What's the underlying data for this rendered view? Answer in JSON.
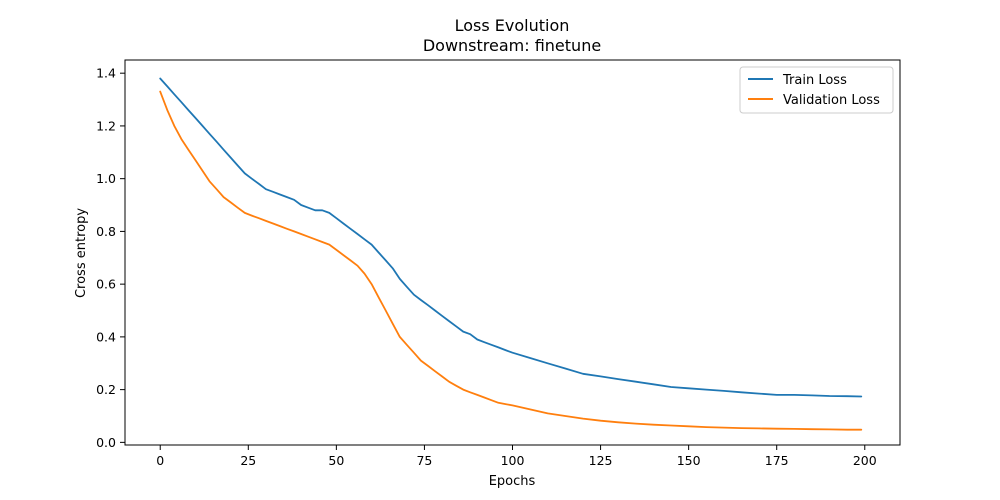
{
  "chart_data": {
    "type": "line",
    "title": "Loss Evolution",
    "subtitle": "Downstream: finetune",
    "xlabel": "Epochs",
    "ylabel": "Cross entropy",
    "xlim": [
      -10,
      210
    ],
    "ylim": [
      -0.01,
      1.45
    ],
    "xticks": [
      0,
      25,
      50,
      75,
      100,
      125,
      150,
      175,
      200
    ],
    "yticks": [
      0.0,
      0.2,
      0.4,
      0.6,
      0.8,
      1.0,
      1.2,
      1.4
    ],
    "xtick_labels": [
      "0",
      "25",
      "50",
      "75",
      "100",
      "125",
      "150",
      "175",
      "200"
    ],
    "ytick_labels": [
      "0.0",
      "0.2",
      "0.4",
      "0.6",
      "0.8",
      "1.0",
      "1.2",
      "1.4"
    ],
    "grid": false,
    "legend_position": "top-right",
    "series": [
      {
        "name": "Train Loss",
        "color": "#1f77b4",
        "x": [
          0,
          2,
          4,
          6,
          8,
          10,
          12,
          14,
          16,
          18,
          20,
          22,
          24,
          26,
          28,
          30,
          32,
          34,
          36,
          38,
          40,
          42,
          44,
          46,
          48,
          50,
          52,
          54,
          56,
          58,
          60,
          62,
          64,
          66,
          68,
          70,
          72,
          74,
          76,
          78,
          80,
          82,
          84,
          86,
          88,
          90,
          92,
          94,
          96,
          98,
          100,
          105,
          110,
          115,
          120,
          125,
          130,
          135,
          140,
          145,
          150,
          155,
          160,
          165,
          170,
          175,
          180,
          185,
          190,
          195,
          199
        ],
        "y": [
          1.38,
          1.35,
          1.32,
          1.29,
          1.26,
          1.23,
          1.2,
          1.17,
          1.14,
          1.11,
          1.08,
          1.05,
          1.02,
          1.0,
          0.98,
          0.96,
          0.95,
          0.94,
          0.93,
          0.92,
          0.9,
          0.89,
          0.88,
          0.88,
          0.87,
          0.85,
          0.83,
          0.81,
          0.79,
          0.77,
          0.75,
          0.72,
          0.69,
          0.66,
          0.62,
          0.59,
          0.56,
          0.54,
          0.52,
          0.5,
          0.48,
          0.46,
          0.44,
          0.42,
          0.41,
          0.39,
          0.38,
          0.37,
          0.36,
          0.35,
          0.34,
          0.32,
          0.3,
          0.28,
          0.26,
          0.25,
          0.24,
          0.23,
          0.22,
          0.21,
          0.205,
          0.2,
          0.195,
          0.19,
          0.185,
          0.18,
          0.18,
          0.178,
          0.176,
          0.175,
          0.174
        ]
      },
      {
        "name": "Validation Loss",
        "color": "#ff7f0e",
        "x": [
          0,
          2,
          4,
          6,
          8,
          10,
          12,
          14,
          16,
          18,
          20,
          22,
          24,
          26,
          28,
          30,
          32,
          34,
          36,
          38,
          40,
          42,
          44,
          46,
          48,
          50,
          52,
          54,
          56,
          58,
          60,
          62,
          64,
          66,
          68,
          70,
          72,
          74,
          76,
          78,
          80,
          82,
          84,
          86,
          88,
          90,
          92,
          94,
          96,
          98,
          100,
          105,
          110,
          115,
          120,
          125,
          130,
          135,
          140,
          145,
          150,
          155,
          160,
          165,
          170,
          175,
          180,
          185,
          190,
          195,
          199
        ],
        "y": [
          1.33,
          1.26,
          1.2,
          1.15,
          1.11,
          1.07,
          1.03,
          0.99,
          0.96,
          0.93,
          0.91,
          0.89,
          0.87,
          0.86,
          0.85,
          0.84,
          0.83,
          0.82,
          0.81,
          0.8,
          0.79,
          0.78,
          0.77,
          0.76,
          0.75,
          0.73,
          0.71,
          0.69,
          0.67,
          0.64,
          0.6,
          0.55,
          0.5,
          0.45,
          0.4,
          0.37,
          0.34,
          0.31,
          0.29,
          0.27,
          0.25,
          0.23,
          0.215,
          0.2,
          0.19,
          0.18,
          0.17,
          0.16,
          0.15,
          0.145,
          0.14,
          0.125,
          0.11,
          0.1,
          0.09,
          0.082,
          0.076,
          0.071,
          0.067,
          0.064,
          0.061,
          0.058,
          0.056,
          0.054,
          0.053,
          0.052,
          0.051,
          0.05,
          0.049,
          0.048,
          0.048
        ]
      }
    ]
  }
}
